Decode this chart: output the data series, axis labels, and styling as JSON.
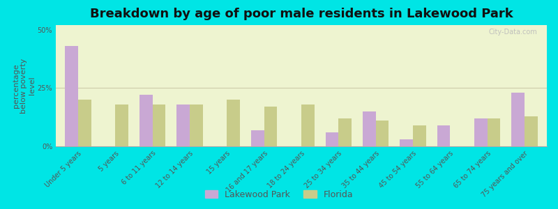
{
  "title": "Breakdown by age of poor male residents in Lakewood Park",
  "ylabel": "percentage\nbelow poverty\nlevel",
  "categories": [
    "Under 5 years",
    "5 years",
    "6 to 11 years",
    "12 to 14 years",
    "15 years",
    "16 and 17 years",
    "18 to 24 years",
    "25 to 34 years",
    "35 to 44 years",
    "45 to 54 years",
    "55 to 64 years",
    "65 to 74 years",
    "75 years and over"
  ],
  "lakewood_values": [
    43.0,
    0.0,
    22.0,
    18.0,
    0.0,
    7.0,
    0.0,
    6.0,
    15.0,
    3.0,
    9.0,
    12.0,
    23.0
  ],
  "florida_values": [
    20.0,
    18.0,
    18.0,
    18.0,
    20.0,
    17.0,
    18.0,
    12.0,
    11.0,
    9.0,
    0.0,
    12.0,
    13.0
  ],
  "lakewood_color": "#c9a8d4",
  "florida_color": "#c8cc8a",
  "background_color": "#00e5e5",
  "plot_bg": "#eef4d0",
  "ylim": [
    0,
    52
  ],
  "yticks": [
    0,
    25,
    50
  ],
  "ytick_labels": [
    "0%",
    "25%",
    "50%"
  ],
  "bar_width": 0.35,
  "title_fontsize": 13,
  "tick_fontsize": 7,
  "ylabel_fontsize": 8,
  "legend_fontsize": 9,
  "watermark": "City-Data.com"
}
